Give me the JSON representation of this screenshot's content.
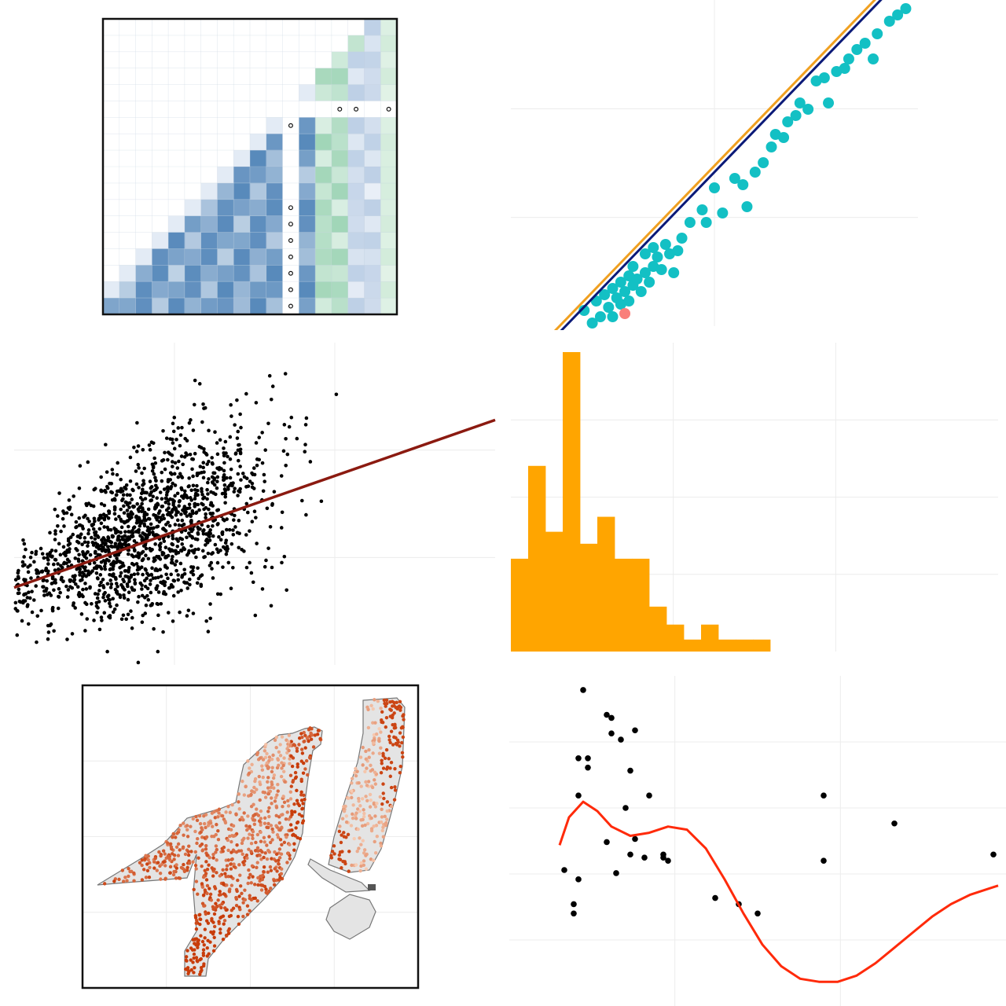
{
  "colors": {
    "heat_blue": "#5b8db8",
    "heat_green": "#8ecfa8",
    "teal": "#13c0c4",
    "salmon": "#f97f7a",
    "navy": "#0b1a78",
    "orange_line": "#f0a020",
    "dark_red": "#8b1a10",
    "hist_orange": "#ffa500",
    "map_fill": "#e4e4e4",
    "map_dot": "#d4560a",
    "smooth_red": "#ff2a0a",
    "grid": "#ececec"
  },
  "chart_data": [
    {
      "id": "heatmap",
      "type": "heatmap",
      "title": "",
      "grid": true,
      "legend": "none",
      "n_rows": 18,
      "n_cols": 18,
      "blue_cols": [
        0,
        10
      ],
      "separator_col": 11,
      "green_cols": [
        13,
        17
      ],
      "empty_row": 5,
      "empty_col": 11,
      "circle_cells": [
        [
          5,
          14
        ],
        [
          5,
          15
        ],
        [
          5,
          17
        ],
        [
          6,
          11
        ],
        [
          11,
          11
        ],
        [
          12,
          11
        ],
        [
          13,
          11
        ],
        [
          14,
          11
        ],
        [
          15,
          11
        ],
        [
          16,
          11
        ],
        [
          17,
          11
        ]
      ]
    },
    {
      "id": "scatter-fit",
      "type": "scatter",
      "title": "",
      "xlabel": "",
      "ylabel": "",
      "xlim": [
        0,
        100
      ],
      "ylim": [
        0,
        100
      ],
      "grid": true,
      "legend": "none",
      "fit_lines": [
        {
          "color_key": "navy",
          "x": [
            0,
            100
          ],
          "y": [
            -18,
            116
          ]
        },
        {
          "color_key": "orange_line",
          "x": [
            0,
            100
          ],
          "y": [
            -16,
            118
          ]
        }
      ],
      "highlight": [
        [
          28,
          4
        ]
      ],
      "points": [
        [
          18,
          5
        ],
        [
          20,
          1
        ],
        [
          21,
          8
        ],
        [
          22,
          3
        ],
        [
          23,
          10
        ],
        [
          24,
          6
        ],
        [
          25,
          3
        ],
        [
          25,
          12
        ],
        [
          26,
          9
        ],
        [
          27,
          7
        ],
        [
          27,
          14
        ],
        [
          28,
          11
        ],
        [
          29,
          8
        ],
        [
          29,
          16
        ],
        [
          30,
          13
        ],
        [
          30,
          19
        ],
        [
          31,
          15
        ],
        [
          32,
          11
        ],
        [
          33,
          17
        ],
        [
          33,
          23
        ],
        [
          34,
          14
        ],
        [
          35,
          19
        ],
        [
          35,
          25
        ],
        [
          36,
          22
        ],
        [
          37,
          18
        ],
        [
          38,
          26
        ],
        [
          39,
          23
        ],
        [
          40,
          17
        ],
        [
          41,
          24
        ],
        [
          42,
          28
        ],
        [
          44,
          33
        ],
        [
          47,
          37
        ],
        [
          48,
          33
        ],
        [
          50,
          44
        ],
        [
          52,
          36
        ],
        [
          55,
          47
        ],
        [
          57,
          45
        ],
        [
          58,
          38
        ],
        [
          60,
          49
        ],
        [
          62,
          52
        ],
        [
          64,
          57
        ],
        [
          65,
          61
        ],
        [
          67,
          60
        ],
        [
          68,
          65
        ],
        [
          70,
          67
        ],
        [
          71,
          71
        ],
        [
          73,
          69
        ],
        [
          75,
          78
        ],
        [
          77,
          79
        ],
        [
          78,
          71
        ],
        [
          80,
          81
        ],
        [
          82,
          82
        ],
        [
          83,
          85
        ],
        [
          85,
          88
        ],
        [
          87,
          90
        ],
        [
          89,
          85
        ],
        [
          90,
          93
        ],
        [
          93,
          97
        ],
        [
          95,
          99
        ],
        [
          97,
          101
        ]
      ]
    },
    {
      "id": "dense-scatter",
      "type": "scatter",
      "title": "",
      "xlabel": "",
      "ylabel": "",
      "xlim": [
        0,
        100
      ],
      "ylim": [
        0,
        100
      ],
      "grid": true,
      "legend": "none",
      "fit_line": {
        "color_key": "dark_red",
        "x": [
          0,
          100
        ],
        "y": [
          24,
          76
        ]
      },
      "n_points": 1500,
      "distribution": {
        "x_center": 28,
        "x_spread": 18,
        "y_intercept": 24,
        "y_slope": 0.52,
        "y_spread": 17
      }
    },
    {
      "id": "histogram",
      "type": "bar",
      "title": "",
      "xlabel": "",
      "ylabel": "",
      "grid": true,
      "legend": "none",
      "bin_count_axis": 28,
      "ylim": [
        0,
        100
      ],
      "values": [
        31,
        62,
        40,
        100,
        36,
        45,
        31,
        31,
        15,
        9,
        4,
        9,
        4,
        4,
        4
      ]
    },
    {
      "id": "map",
      "type": "scatter",
      "title": "",
      "grid": true,
      "legend": "none",
      "n_points": 1100
    },
    {
      "id": "smooth",
      "type": "scatter",
      "title": "",
      "xlabel": "",
      "ylabel": "",
      "xlim": [
        0,
        100
      ],
      "ylim": [
        0,
        100
      ],
      "grid": true,
      "legend": "none",
      "points": [
        [
          8,
          37
        ],
        [
          10,
          42
        ],
        [
          10,
          33
        ],
        [
          10,
          26
        ],
        [
          11,
          34
        ],
        [
          11,
          31
        ],
        [
          12,
          37
        ],
        [
          11,
          35
        ],
        [
          13,
          43
        ],
        [
          14,
          37
        ],
        [
          15,
          35
        ],
        [
          16,
          41
        ],
        [
          16,
          33
        ],
        [
          19,
          39
        ],
        [
          21,
          32
        ],
        [
          22,
          40
        ],
        [
          21,
          42
        ],
        [
          24,
          38
        ],
        [
          23,
          35
        ],
        [
          26,
          37
        ],
        [
          26,
          36
        ],
        [
          27,
          41
        ],
        [
          29,
          41
        ],
        [
          33,
          34
        ],
        [
          38,
          32
        ],
        [
          42,
          30
        ],
        [
          42,
          25
        ],
        [
          63,
          44
        ],
        [
          99,
          32
        ],
        [
          13,
          98
        ],
        [
          17,
          88
        ],
        [
          18,
          84
        ],
        [
          20,
          80
        ],
        [
          21,
          85
        ],
        [
          25,
          76
        ],
        [
          13,
          77
        ],
        [
          11,
          64
        ],
        [
          20,
          62
        ],
        [
          25,
          58
        ],
        [
          30,
          56
        ],
        [
          36,
          40
        ],
        [
          40,
          38
        ],
        [
          43,
          33
        ],
        [
          23,
          52
        ]
      ],
      "points_list": [
        [
          8,
          40
        ],
        [
          10,
          29
        ],
        [
          10,
          26
        ],
        [
          11,
          64
        ],
        [
          11,
          37
        ],
        [
          11,
          76
        ],
        [
          13,
          76
        ],
        [
          13,
          73
        ],
        [
          17,
          49
        ],
        [
          19,
          39
        ],
        [
          21,
          60
        ],
        [
          22,
          45
        ],
        [
          23,
          50
        ],
        [
          25,
          44
        ],
        [
          29,
          45
        ],
        [
          29,
          44
        ],
        [
          30,
          43
        ],
        [
          40,
          31
        ],
        [
          45,
          29
        ],
        [
          49,
          26
        ],
        [
          63,
          43
        ],
        [
          78,
          55
        ],
        [
          99,
          45
        ]
      ],
      "curve_x": [
        7,
        9,
        12,
        15,
        18,
        22,
        26,
        30,
        34,
        38,
        42,
        46,
        50,
        54,
        58,
        62,
        66,
        70,
        74,
        78,
        82,
        86,
        90,
        94,
        98,
        100
      ],
      "curve_y": [
        48,
        57,
        62,
        59,
        54,
        51,
        52,
        54,
        53,
        47,
        37,
        26,
        16,
        9,
        5,
        4,
        4,
        6,
        10,
        15,
        20,
        25,
        29,
        32,
        34,
        35
      ]
    }
  ]
}
